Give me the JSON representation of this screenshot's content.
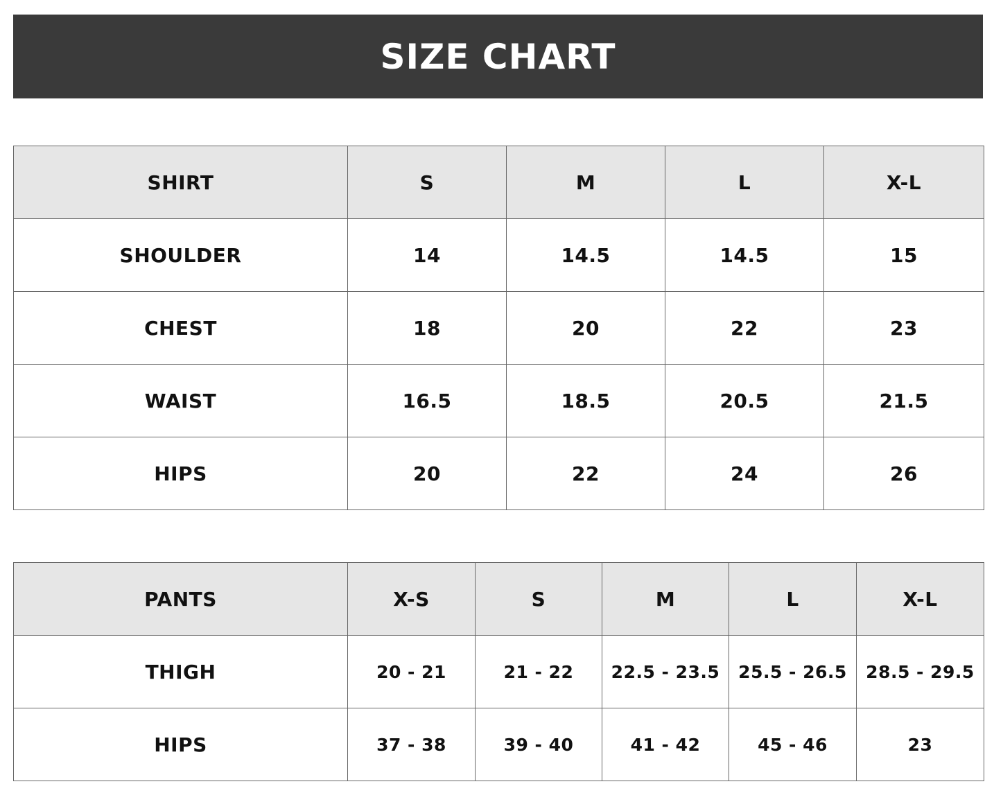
{
  "title": "SIZE CHART",
  "shirt": {
    "headers": [
      "SHIRT",
      "S",
      "M",
      "L",
      "X-L"
    ],
    "rows": [
      [
        "SHOULDER",
        "14",
        "14.5",
        "14.5",
        "15"
      ],
      [
        "CHEST",
        "18",
        "20",
        "22",
        "23"
      ],
      [
        "WAIST",
        "16.5",
        "18.5",
        "20.5",
        "21.5"
      ],
      [
        "HIPS",
        "20",
        "22",
        "24",
        "26"
      ]
    ]
  },
  "pants": {
    "headers": [
      "PANTS",
      "X-S",
      "S",
      "M",
      "L",
      "X-L"
    ],
    "rows": [
      [
        "THIGH",
        "20 - 21",
        "21 - 22",
        "22.5 - 23.5",
        "25.5 - 26.5",
        "28.5 - 29.5"
      ],
      [
        "HIPS",
        "37 - 38",
        "39 - 40",
        "41 - 42",
        "45 - 46",
        "23"
      ]
    ]
  },
  "colors": {
    "banner": "#3a3a3a",
    "header_row": "#e6e6e6",
    "border": "#666666"
  }
}
